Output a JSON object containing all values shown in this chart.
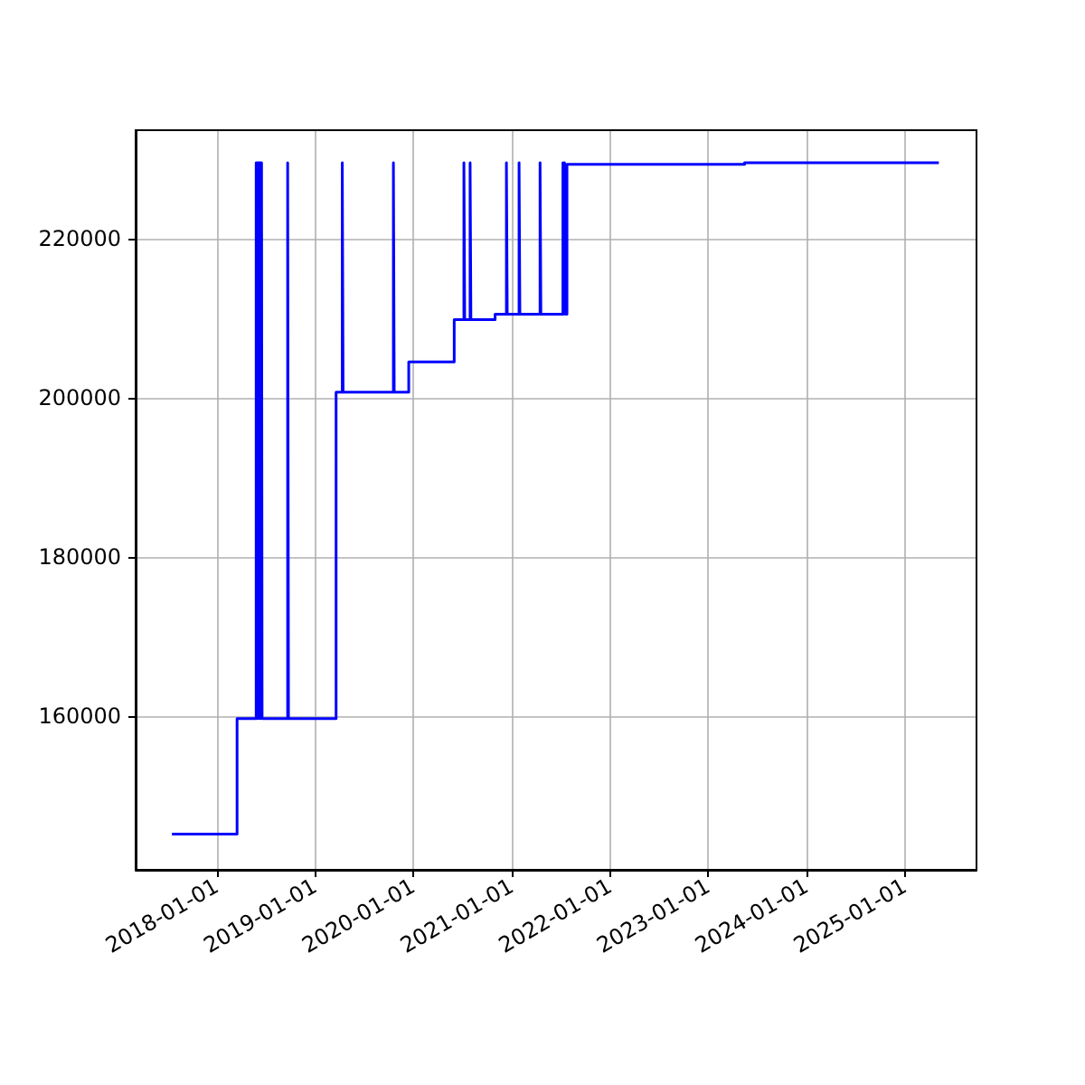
{
  "chart_data": {
    "type": "step",
    "color": "#0000ff",
    "marker": "none",
    "line_style": "solid",
    "grid": true,
    "x": [
      "2017-07-19",
      "2018-03-18",
      "2018-05-28",
      "2018-05-30",
      "2018-06-01",
      "2018-06-03",
      "2018-06-05",
      "2018-06-07",
      "2018-06-09",
      "2018-06-11",
      "2018-06-13",
      "2018-06-15",
      "2018-06-17",
      "2018-06-19",
      "2018-09-22",
      "2018-09-25",
      "2019-03-21",
      "2019-04-13",
      "2019-04-16",
      "2019-10-20",
      "2019-10-23",
      "2019-12-16",
      "2020-06-02",
      "2020-07-08",
      "2020-07-11",
      "2020-07-31",
      "2020-08-03",
      "2020-11-01",
      "2020-12-13",
      "2020-12-16",
      "2021-01-29",
      "2021-02-01",
      "2021-04-17",
      "2021-04-20",
      "2021-07-11",
      "2021-07-14",
      "2021-07-17",
      "2021-07-20",
      "2021-07-26",
      "2023-05-17",
      "2025-05-08"
    ],
    "values": [
      145200,
      159700,
      229500,
      159700,
      229500,
      159700,
      229500,
      159700,
      229500,
      159700,
      229500,
      159700,
      229500,
      159700,
      229500,
      159700,
      200700,
      229500,
      200700,
      229500,
      200700,
      204500,
      209800,
      229500,
      209800,
      229500,
      209800,
      210500,
      229500,
      210500,
      229500,
      210500,
      229500,
      210500,
      229500,
      210500,
      229500,
      210500,
      229300,
      229500,
      229500
    ],
    "xlim": [
      "2017-03-06",
      "2025-09-25"
    ],
    "xticks": [
      "2018-01-01",
      "2019-01-01",
      "2020-01-01",
      "2021-01-01",
      "2022-01-01",
      "2023-01-01",
      "2024-01-01",
      "2025-01-01"
    ],
    "ylim": [
      140700,
      233600
    ],
    "yticks": [
      160000,
      180000,
      200000,
      220000
    ]
  }
}
